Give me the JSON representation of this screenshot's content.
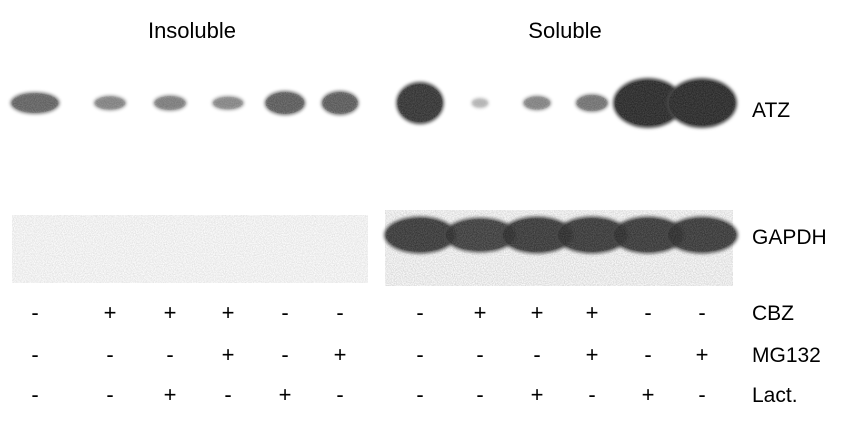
{
  "panels": [
    {
      "title": "Insoluble"
    },
    {
      "title": "Soluble"
    }
  ],
  "bands": {
    "atz_label": "ATZ",
    "gapdh_label": "GAPDH"
  },
  "lanes_per_panel": 6,
  "band_color": "#4a4a4a",
  "atz_intensity": {
    "insoluble": [
      0.55,
      0.35,
      0.38,
      0.32,
      0.6,
      0.6
    ],
    "soluble": [
      0.9,
      0.05,
      0.35,
      0.45,
      1.0,
      1.0
    ]
  },
  "gapdh_intensity": {
    "insoluble": [
      0.08,
      0.08,
      0.08,
      0.08,
      0.08,
      0.08
    ],
    "soluble": [
      0.85,
      0.8,
      0.85,
      0.85,
      0.85,
      0.85
    ]
  },
  "treatments": [
    {
      "label": "CBZ",
      "signs": [
        "-",
        "+",
        "+",
        "+",
        "-",
        "-",
        "-",
        "+",
        "+",
        "+",
        "-",
        "-"
      ]
    },
    {
      "label": "MG132",
      "signs": [
        "-",
        "-",
        "-",
        "+",
        "-",
        "+",
        "-",
        "-",
        "-",
        "+",
        "-",
        "+"
      ]
    },
    {
      "label": "Lact.",
      "signs": [
        "-",
        "-",
        "+",
        "-",
        "+",
        "-",
        "-",
        "-",
        "+",
        "-",
        "+",
        "-"
      ]
    }
  ]
}
